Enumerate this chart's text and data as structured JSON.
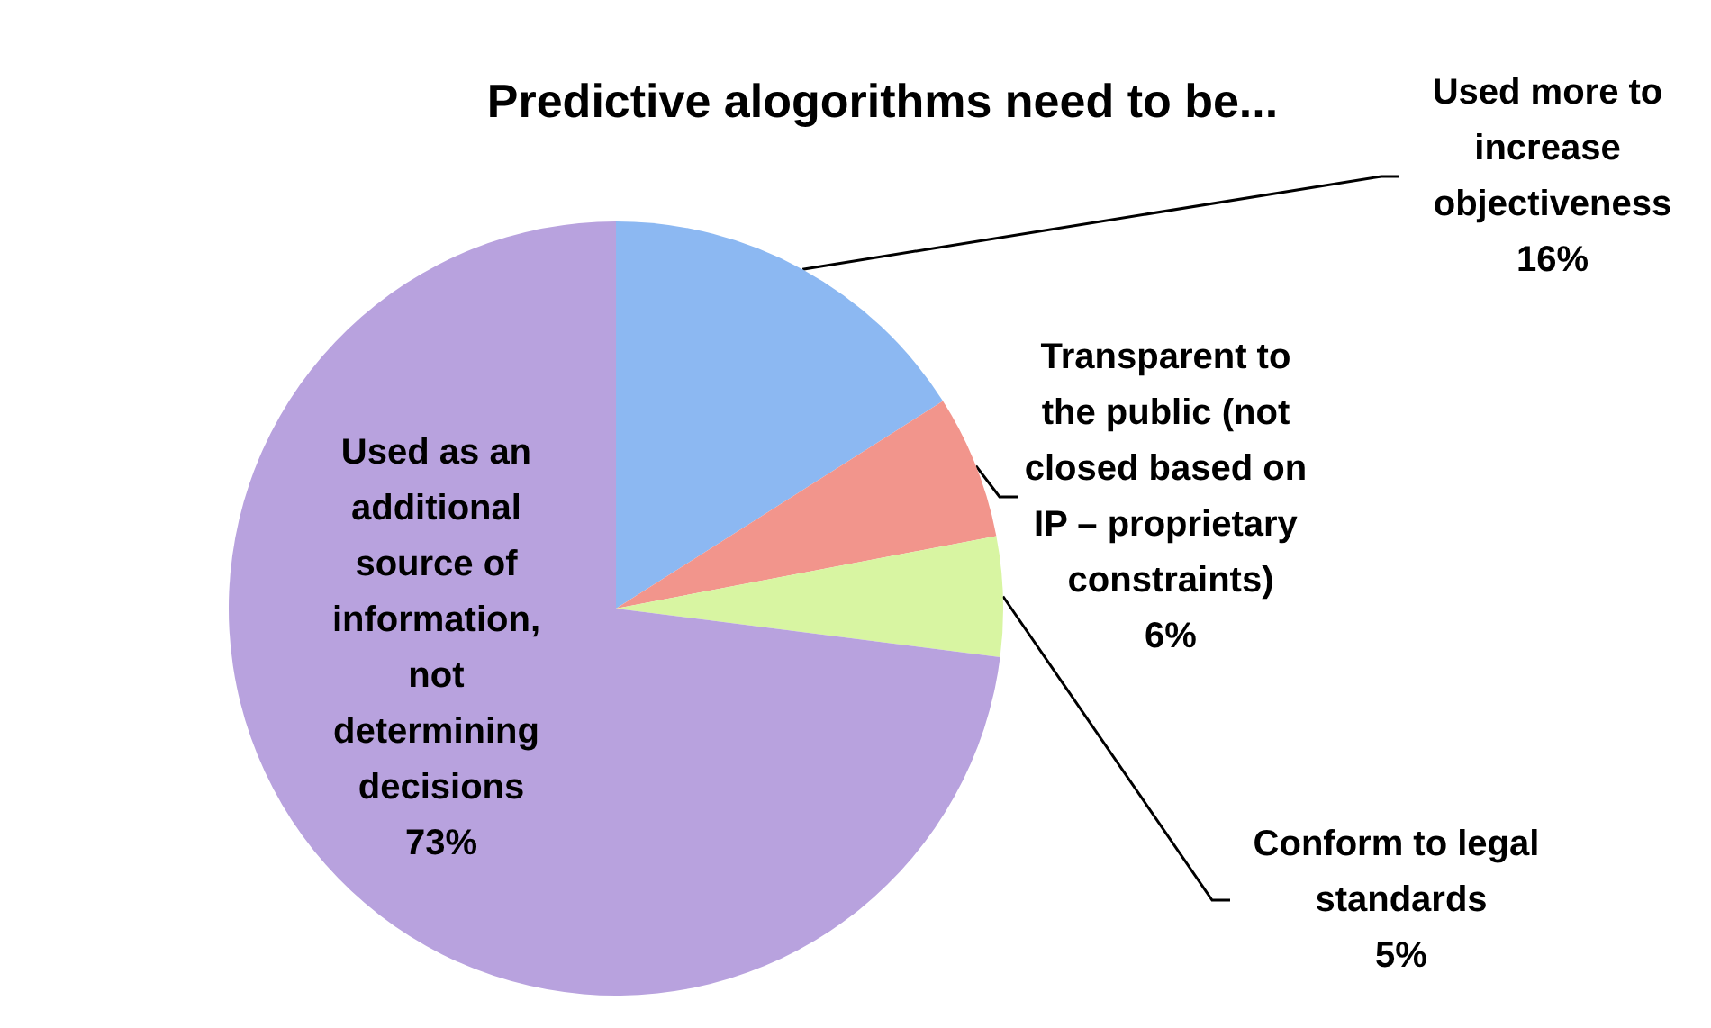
{
  "chart_data": {
    "type": "pie",
    "title": "Predictive alogorithms need to be...",
    "categories": [
      "Used more to increase objectiveness",
      "Transparent to the public (not closed based on IP – proprietary constraints)",
      "Conform to legal standards",
      "Used as an additional source of information, not determining decisions"
    ],
    "values": [
      16,
      6,
      5,
      73
    ],
    "colors": [
      "#8cb8f2",
      "#f2958c",
      "#d8f5a2",
      "#b8a2de"
    ],
    "value_labels": [
      "16%",
      "6%",
      "5%",
      "73%"
    ]
  }
}
